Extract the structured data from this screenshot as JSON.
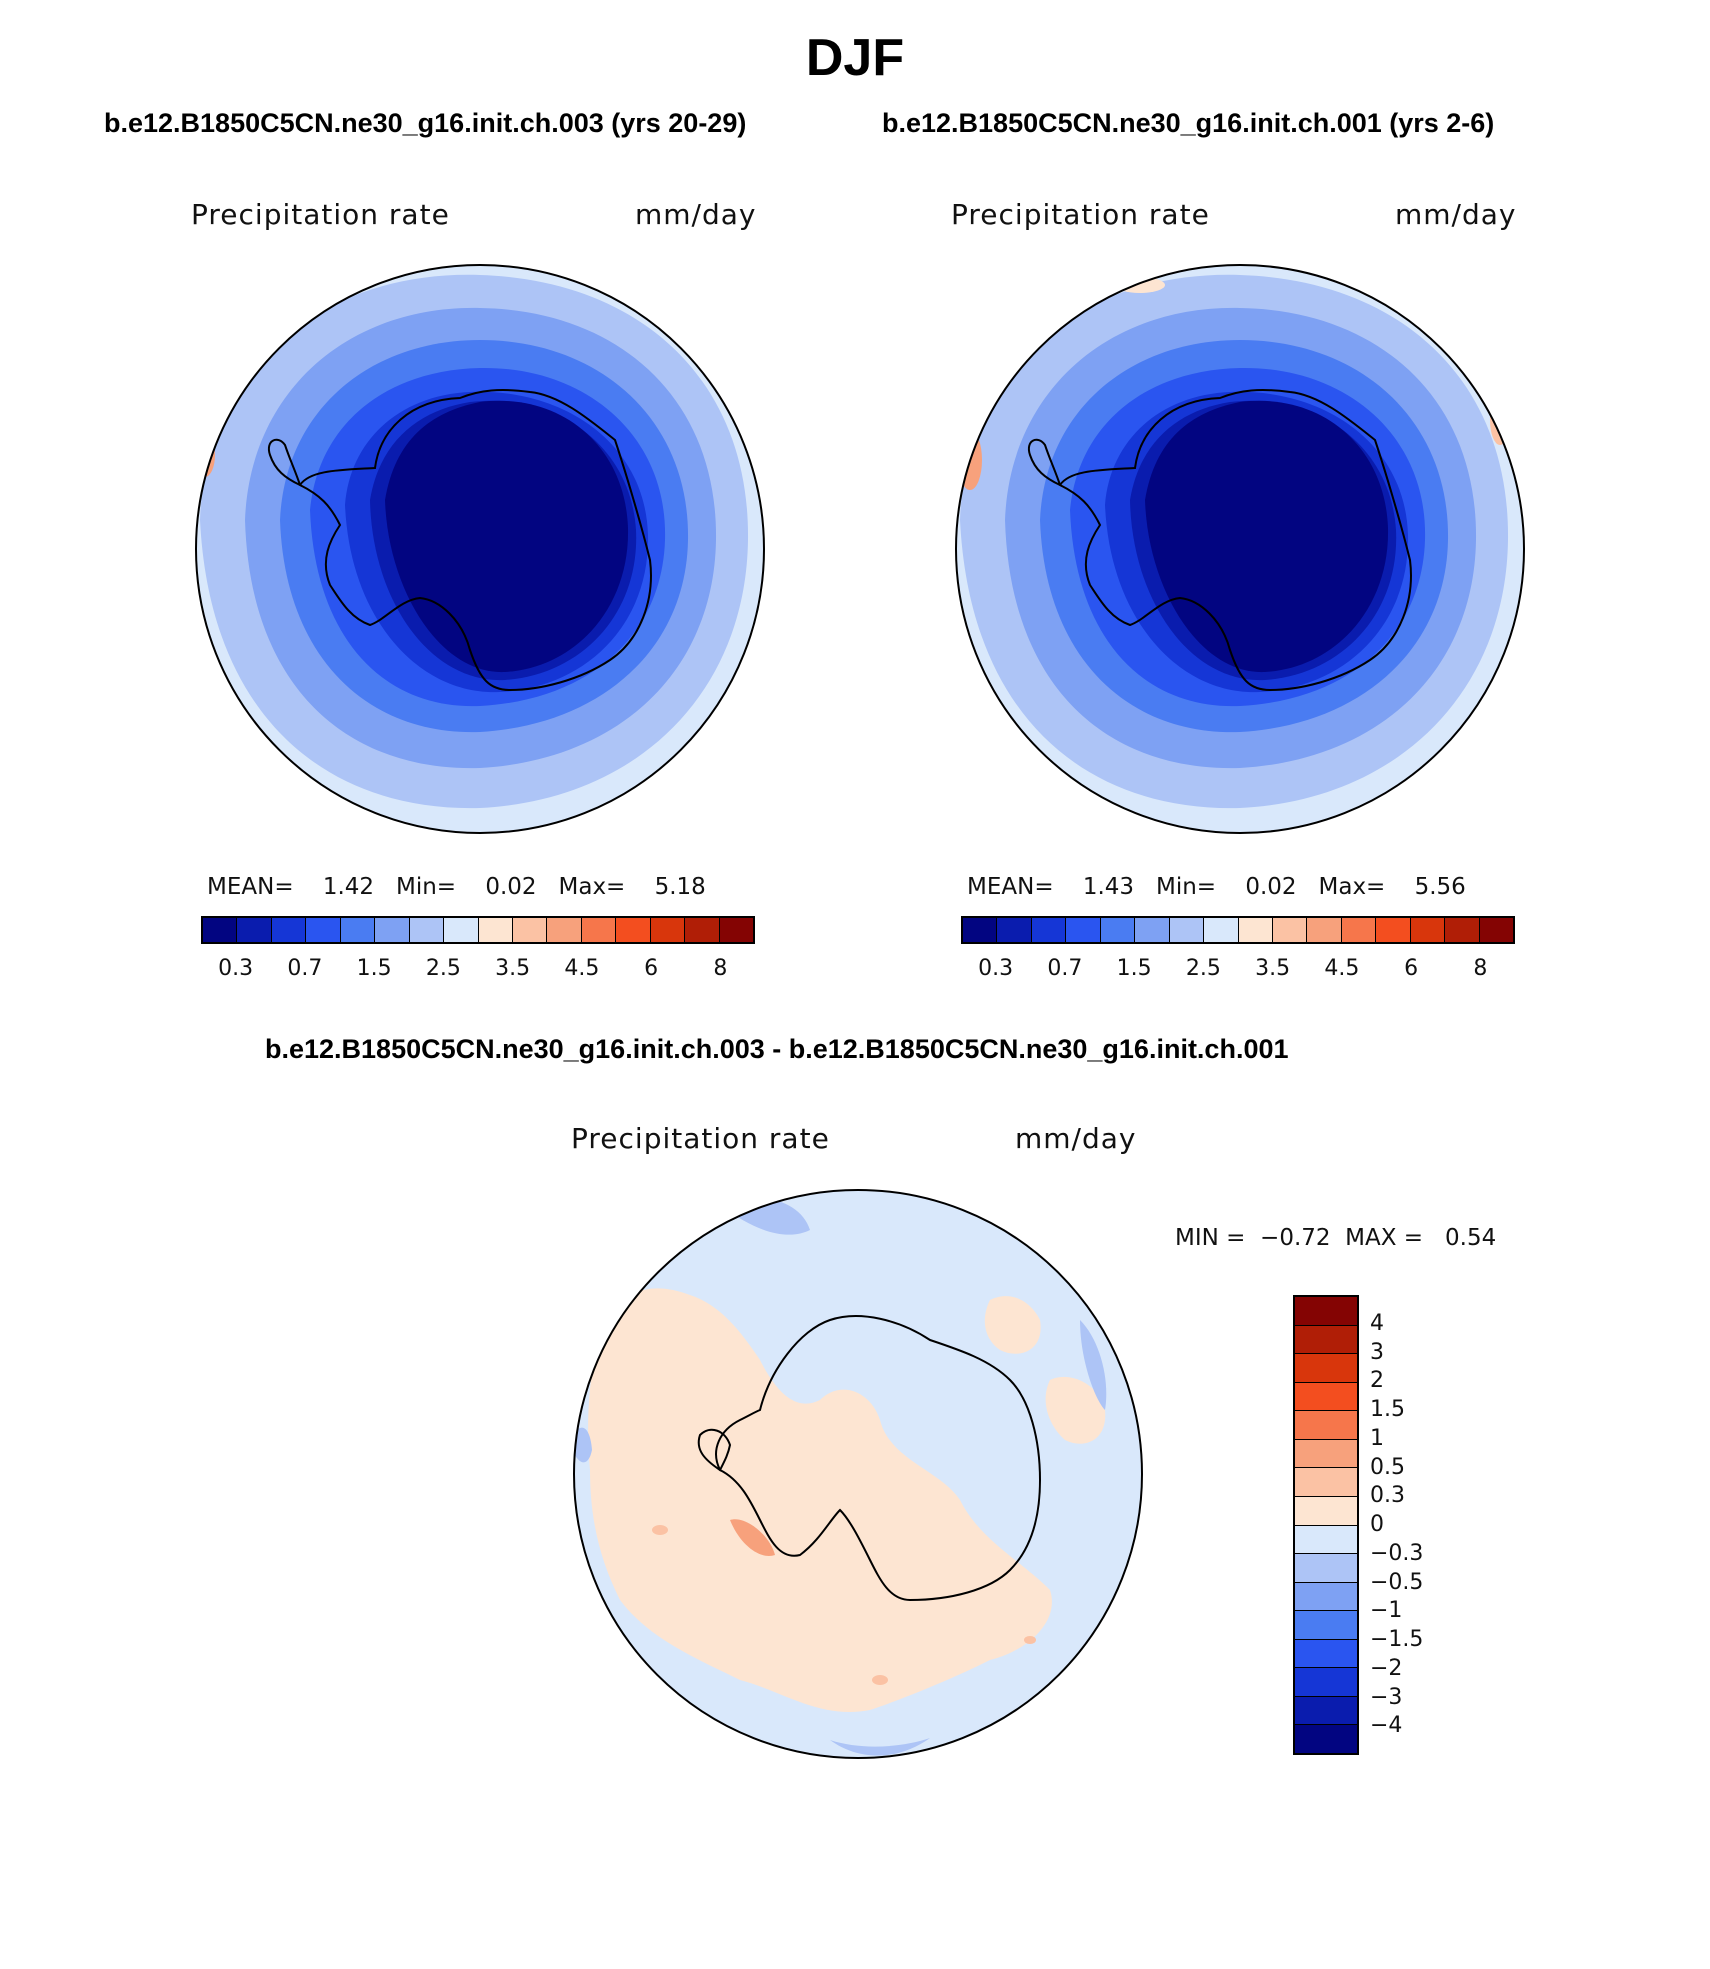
{
  "page_title": "DJF",
  "panels": [
    {
      "case_title": "b.e12.B1850C5CN.ne30_g16.init.ch.003 (yrs 20-29)",
      "variable": "Precipitation rate",
      "units": "mm/day",
      "mean_label": "MEAN=",
      "mean": "1.42",
      "min_label": "Min=",
      "min": "0.02",
      "max_label": "Max=",
      "max": "5.18"
    },
    {
      "case_title": "b.e12.B1850C5CN.ne30_g16.init.ch.001 (yrs 2-6)",
      "variable": "Precipitation rate",
      "units": "mm/day",
      "mean_label": "MEAN=",
      "mean": "1.43",
      "min_label": "Min=",
      "min": "0.02",
      "max_label": "Max=",
      "max": "5.56"
    }
  ],
  "diff_panel": {
    "case_title": "b.e12.B1850C5CN.ne30_g16.init.ch.003 - b.e12.B1850C5CN.ne30_g16.init.ch.001",
    "variable": "Precipitation rate",
    "units": "mm/day",
    "min_label": "MIN =",
    "min": "−0.72",
    "max_label": "MAX =",
    "max": "0.54"
  },
  "colorbar_field": {
    "colors": [
      "#020581",
      "#0a1cae",
      "#1536d6",
      "#2a55f0",
      "#4a7cf2",
      "#7ea1f3",
      "#adc4f6",
      "#d9e8fb",
      "#fde5d2",
      "#fbc2a4",
      "#f7a17c",
      "#f6764b",
      "#f34e1f",
      "#d8360c",
      "#b01e06",
      "#840403"
    ],
    "tick_labels": [
      "0.3",
      "0.7",
      "1.5",
      "2.5",
      "3.5",
      "4.5",
      "6",
      "8"
    ]
  },
  "colorbar_diff": {
    "colors": [
      "#840403",
      "#b01e06",
      "#d8360c",
      "#f34e1f",
      "#f6764b",
      "#f7a17c",
      "#fbc2a4",
      "#fde5d2",
      "#d9e8fb",
      "#adc4f6",
      "#7ea1f3",
      "#4a7cf2",
      "#2a55f0",
      "#1536d6",
      "#0a1cae",
      "#020581"
    ],
    "tick_labels": [
      "4",
      "3",
      "2",
      "1.5",
      "1",
      "0.5",
      "0.3",
      "0",
      "−0.3",
      "−0.5",
      "−1",
      "−1.5",
      "−2",
      "−3",
      "−4"
    ]
  }
}
